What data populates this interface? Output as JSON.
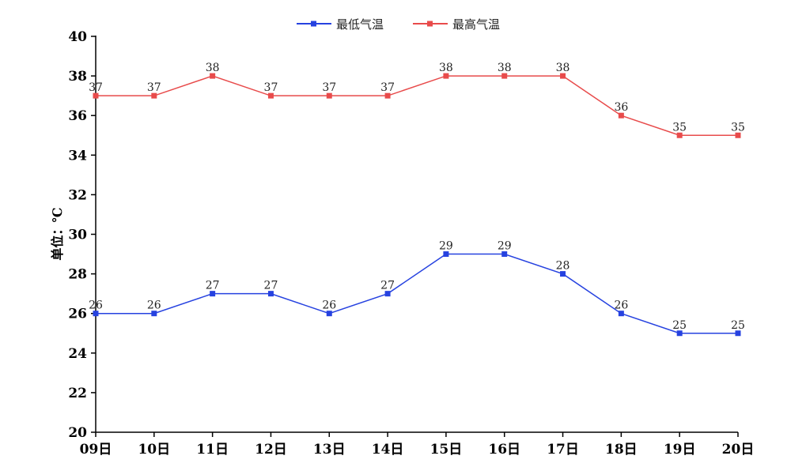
{
  "chart_data": {
    "type": "line",
    "title": "",
    "xlabel": "",
    "ylabel": "单位：℃",
    "categories": [
      "09日",
      "10日",
      "11日",
      "12日",
      "13日",
      "14日",
      "15日",
      "16日",
      "17日",
      "18日",
      "19日",
      "20日"
    ],
    "ylim": [
      20,
      40
    ],
    "yticks": [
      20,
      22,
      24,
      26,
      28,
      30,
      32,
      34,
      36,
      38,
      40
    ],
    "legend_position": "top-center",
    "grid": false,
    "series": [
      {
        "name": "最低气温",
        "color": "#2642e0",
        "values": [
          26,
          26,
          27,
          27,
          26,
          27,
          29,
          29,
          28,
          26,
          25,
          25
        ]
      },
      {
        "name": "最高气温",
        "color": "#e84b4b",
        "values": [
          37,
          37,
          38,
          37,
          37,
          37,
          38,
          38,
          38,
          36,
          35,
          35
        ]
      }
    ]
  }
}
